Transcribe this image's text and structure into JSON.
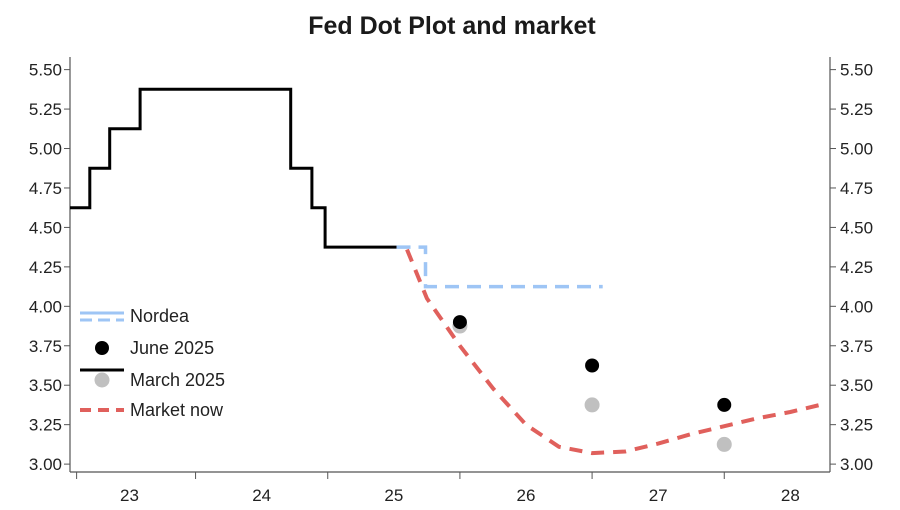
{
  "chart_data": {
    "type": "line",
    "title": "Fed Dot Plot and market",
    "xlabel": "",
    "ylabel": "",
    "x_range": [
      2022.55,
      2028.3
    ],
    "ylim": [
      2.95,
      5.58
    ],
    "x_ticks": [
      {
        "label": "23",
        "x": 2023
      },
      {
        "label": "24",
        "x": 2024
      },
      {
        "label": "25",
        "x": 2025
      },
      {
        "label": "26",
        "x": 2026
      },
      {
        "label": "27",
        "x": 2027
      },
      {
        "label": "28",
        "x": 2028
      }
    ],
    "y_ticks": [
      "5.50",
      "5.25",
      "5.00",
      "4.75",
      "4.50",
      "4.25",
      "4.00",
      "3.75",
      "3.50",
      "3.25",
      "3.00"
    ],
    "grid": false,
    "legend_position": "left",
    "legend": [
      "Nordea",
      "June 2025",
      "March 2025",
      "Market now"
    ],
    "colors": {
      "nordea": "#9ec5f5",
      "june": "#000000",
      "march": "#c0c0c0",
      "market": "#e0605c",
      "history": "#000000",
      "axis": "#555555"
    },
    "series": [
      {
        "name": "March 2025",
        "style": "step-line",
        "points": [
          [
            2022.55,
            4.625
          ],
          [
            2022.7,
            4.625
          ],
          [
            2022.7,
            4.875
          ],
          [
            2022.85,
            4.875
          ],
          [
            2022.85,
            5.125
          ],
          [
            2023.08,
            5.125
          ],
          [
            2023.08,
            5.375
          ],
          [
            2024.22,
            5.375
          ],
          [
            2024.22,
            4.875
          ],
          [
            2024.38,
            4.875
          ],
          [
            2024.38,
            4.625
          ],
          [
            2024.48,
            4.625
          ],
          [
            2024.48,
            4.375
          ],
          [
            2025.02,
            4.375
          ]
        ]
      },
      {
        "name": "Nordea",
        "style": "dashed",
        "points": [
          [
            2025.02,
            4.375
          ],
          [
            2025.24,
            4.375
          ],
          [
            2025.24,
            4.125
          ],
          [
            2026.58,
            4.125
          ]
        ]
      },
      {
        "name": "Market now",
        "style": "dashed",
        "points": [
          [
            2025.1,
            4.36
          ],
          [
            2025.25,
            4.05
          ],
          [
            2025.5,
            3.75
          ],
          [
            2025.75,
            3.48
          ],
          [
            2026.0,
            3.25
          ],
          [
            2026.25,
            3.11
          ],
          [
            2026.5,
            3.07
          ],
          [
            2026.75,
            3.08
          ],
          [
            2027.0,
            3.13
          ],
          [
            2027.25,
            3.19
          ],
          [
            2027.5,
            3.24
          ],
          [
            2027.75,
            3.29
          ],
          [
            2028.0,
            3.33
          ],
          [
            2028.25,
            3.38
          ]
        ]
      },
      {
        "name": "June 2025",
        "style": "dots",
        "points": [
          [
            2025.5,
            3.9
          ],
          [
            2026.5,
            3.625
          ],
          [
            2027.5,
            3.375
          ]
        ]
      },
      {
        "name": "March 2025",
        "style": "dots",
        "points": [
          [
            2025.5,
            3.875
          ],
          [
            2026.5,
            3.375
          ],
          [
            2027.5,
            3.125
          ]
        ]
      }
    ]
  }
}
